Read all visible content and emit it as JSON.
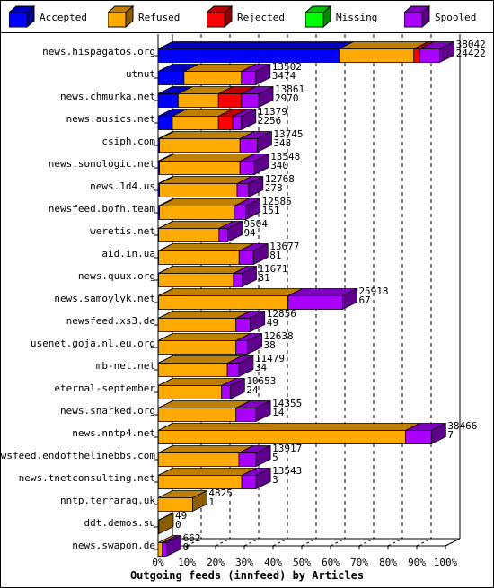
{
  "chart_data": {
    "type": "bar",
    "stacked": true,
    "orientation": "horizontal",
    "xlabel": "Outgoing feeds (innfeed) by Articles",
    "x_ticks": [
      "0%",
      "10%",
      "20%",
      "30%",
      "40%",
      "50%",
      "60%",
      "70%",
      "80%",
      "90%",
      "100%"
    ],
    "xlim": [
      0,
      100
    ],
    "legend_position": "top",
    "series": [
      {
        "name": "Accepted",
        "color": "#0000ff"
      },
      {
        "name": "Refused",
        "color": "#ffaa00"
      },
      {
        "name": "Rejected",
        "color": "#ff0000"
      },
      {
        "name": "Missing",
        "color": "#00ff00"
      },
      {
        "name": "Spooled",
        "color": "#aa00ff"
      }
    ],
    "rows": [
      {
        "label": "news.hispagatos.org",
        "total": "38042",
        "second": "24422",
        "pct": [
          63,
          26,
          2,
          0,
          7
        ]
      },
      {
        "label": "utnut",
        "total": "13502",
        "second": "3474",
        "pct": [
          9,
          20,
          0,
          0,
          5
        ]
      },
      {
        "label": "news.chmurka.net",
        "total": "13861",
        "second": "2970",
        "pct": [
          7,
          14,
          8,
          0,
          6
        ]
      },
      {
        "label": "news.ausics.net",
        "total": "11379",
        "second": "2256",
        "pct": [
          5,
          16,
          5,
          0,
          3
        ]
      },
      {
        "label": "csiph.com",
        "total": "13745",
        "second": "348",
        "pct": [
          0.5,
          28,
          0,
          0,
          6
        ]
      },
      {
        "label": "news.sonologic.net",
        "total": "13548",
        "second": "340",
        "pct": [
          0.5,
          28,
          0,
          0,
          5
        ]
      },
      {
        "label": "news.1d4.us",
        "total": "12768",
        "second": "278",
        "pct": [
          0.5,
          27,
          0,
          0,
          4
        ]
      },
      {
        "label": "newsfeed.bofh.team",
        "total": "12585",
        "second": "151",
        "pct": [
          0.5,
          26,
          0,
          0,
          4
        ]
      },
      {
        "label": "weretis.net",
        "total": "9504",
        "second": "94",
        "pct": [
          0.2,
          21,
          0,
          0,
          3
        ]
      },
      {
        "label": "aid.in.ua",
        "total": "13677",
        "second": "81",
        "pct": [
          0.2,
          28,
          0,
          0,
          5
        ]
      },
      {
        "label": "news.quux.org",
        "total": "11671",
        "second": "81",
        "pct": [
          0.2,
          26,
          0,
          0,
          3
        ]
      },
      {
        "label": "news.samoylyk.net",
        "total": "25918",
        "second": "67",
        "pct": [
          0.2,
          45,
          0,
          0,
          19
        ]
      },
      {
        "label": "newsfeed.xs3.de",
        "total": "12856",
        "second": "49",
        "pct": [
          0.1,
          27,
          0,
          0,
          5
        ]
      },
      {
        "label": "usenet.goja.nl.eu.org",
        "total": "12638",
        "second": "38",
        "pct": [
          0.1,
          27,
          0,
          0,
          4
        ]
      },
      {
        "label": "mb-net.net",
        "total": "11479",
        "second": "34",
        "pct": [
          0.1,
          24,
          0,
          0,
          4
        ]
      },
      {
        "label": "eternal-september",
        "total": "10653",
        "second": "24",
        "pct": [
          0.1,
          22,
          0,
          0,
          3
        ]
      },
      {
        "label": "news.snarked.org",
        "total": "14355",
        "second": "14",
        "pct": [
          0.1,
          27,
          0,
          0,
          7
        ]
      },
      {
        "label": "news.nntp4.net",
        "total": "38466",
        "second": "7",
        "pct": [
          0.1,
          86,
          0,
          0,
          9
        ]
      },
      {
        "label": "newsfeed.endofthelinebbs.com",
        "total": "13917",
        "second": "5",
        "pct": [
          0.1,
          28,
          0,
          0,
          6
        ]
      },
      {
        "label": "news.tnetconsulting.net",
        "total": "13543",
        "second": "3",
        "pct": [
          0.1,
          29,
          0,
          0,
          5
        ]
      },
      {
        "label": "nntp.terraraq.uk",
        "total": "4825",
        "second": "1",
        "pct": [
          0,
          12,
          0,
          0,
          0
        ]
      },
      {
        "label": "ddt.demos.su",
        "total": "49",
        "second": "0",
        "pct": [
          0,
          0.3,
          0,
          0,
          0
        ]
      },
      {
        "label": "news.swapon.de",
        "total": "662",
        "second": "0",
        "pct": [
          0,
          1.5,
          0,
          0,
          1.5
        ]
      }
    ]
  }
}
